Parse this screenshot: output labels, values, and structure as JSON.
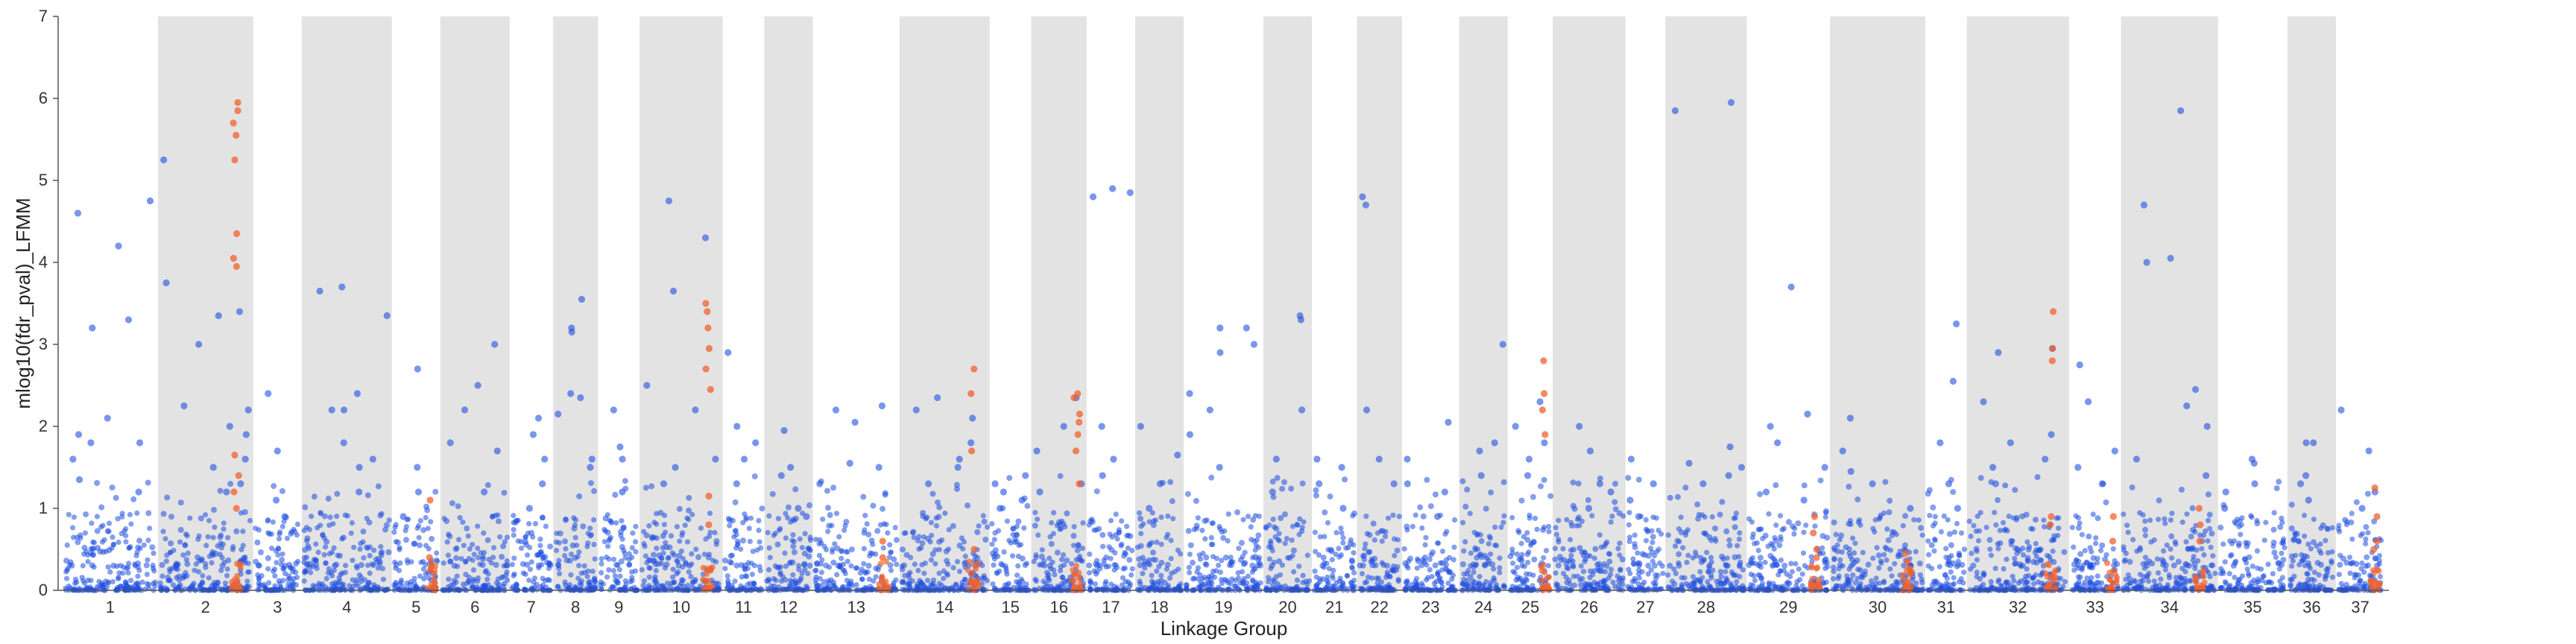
{
  "chart_data": {
    "type": "scatter",
    "title": "",
    "xlabel": "Linkage Group",
    "ylabel": "mlog10(fdr_pval)_LFMM",
    "ylim": [
      0,
      7
    ],
    "yticks": [
      0,
      1,
      2,
      3,
      4,
      5,
      6,
      7
    ],
    "grid": false,
    "shaded_alternate_groups": true,
    "colors": {
      "neutral": "#1f4fe0",
      "highlight": "#f0622e",
      "band": "#e3e3e3",
      "axis": "#555555"
    },
    "groups": [
      {
        "label": "1",
        "width": 5.5,
        "peaks": [
          4.75,
          4.6,
          4.2,
          3.3,
          3.2,
          2.1,
          1.9,
          1.8,
          1.8,
          1.6,
          1.35,
          1.2
        ],
        "hl": []
      },
      {
        "label": "2",
        "width": 5.5,
        "peaks": [
          5.25,
          3.75,
          3.4,
          3.35,
          3.0,
          2.25,
          2.2,
          2.0,
          1.9,
          1.6,
          1.5,
          1.3,
          1.2
        ],
        "hl": [
          5.95,
          5.85,
          5.7,
          5.55,
          5.25,
          4.35,
          4.05,
          3.95,
          1.65,
          1.4,
          1.2,
          1.0
        ]
      },
      {
        "label": "3",
        "width": 2.8,
        "peaks": [
          2.4,
          1.7,
          1.1,
          0.9
        ],
        "hl": []
      },
      {
        "label": "4",
        "width": 5.2,
        "peaks": [
          3.7,
          3.65,
          3.35,
          2.4,
          2.2,
          2.2,
          1.8,
          1.6,
          1.5,
          1.2
        ],
        "hl": []
      },
      {
        "label": "5",
        "width": 2.8,
        "peaks": [
          2.7,
          1.5,
          1.2,
          0.9
        ],
        "hl": [
          1.1,
          0.4
        ]
      },
      {
        "label": "6",
        "width": 4.0,
        "peaks": [
          3.0,
          2.5,
          2.2,
          1.8,
          1.7,
          1.2
        ],
        "hl": []
      },
      {
        "label": "7",
        "width": 2.5,
        "peaks": [
          2.1,
          1.9,
          1.6,
          1.3,
          1.0
        ],
        "hl": []
      },
      {
        "label": "8",
        "width": 2.6,
        "peaks": [
          3.55,
          3.2,
          3.15,
          2.4,
          2.35,
          2.15,
          1.6,
          1.5
        ],
        "hl": []
      },
      {
        "label": "9",
        "width": 2.4,
        "peaks": [
          2.2,
          1.75,
          1.6,
          1.2
        ],
        "hl": []
      },
      {
        "label": "10",
        "width": 4.8,
        "peaks": [
          4.75,
          4.3,
          3.65,
          2.5,
          2.2,
          1.6,
          1.5,
          1.3
        ],
        "hl": [
          3.5,
          3.4,
          3.2,
          2.95,
          2.7,
          2.45,
          1.15,
          0.8
        ]
      },
      {
        "label": "11",
        "width": 2.4,
        "peaks": [
          2.9,
          2.0,
          1.8,
          1.6,
          1.3
        ],
        "hl": []
      },
      {
        "label": "12",
        "width": 2.8,
        "peaks": [
          1.95,
          1.5,
          1.4,
          1.0,
          0.9
        ],
        "hl": []
      },
      {
        "label": "13",
        "width": 5.0,
        "peaks": [
          2.25,
          2.2,
          2.05,
          1.55,
          1.5,
          1.3
        ],
        "hl": [
          0.6,
          0.4
        ]
      },
      {
        "label": "14",
        "width": 5.2,
        "peaks": [
          2.35,
          2.2,
          2.1,
          1.8,
          1.6,
          1.5,
          1.3
        ],
        "hl": [
          2.7,
          2.4,
          1.7,
          0.5
        ]
      },
      {
        "label": "15",
        "width": 2.4,
        "peaks": [
          1.4,
          1.3,
          1.2,
          1.1,
          1.0
        ],
        "hl": []
      },
      {
        "label": "16",
        "width": 3.2,
        "peaks": [
          2.35,
          2.0,
          1.7,
          1.3,
          1.2
        ],
        "hl": [
          2.4,
          2.35,
          2.15,
          2.05,
          1.9,
          1.7,
          1.3
        ]
      },
      {
        "label": "17",
        "width": 2.8,
        "peaks": [
          4.9,
          4.85,
          4.8,
          2.0,
          1.6,
          1.4
        ],
        "hl": []
      },
      {
        "label": "18",
        "width": 2.8,
        "peaks": [
          2.0,
          1.65,
          1.3,
          1.0
        ],
        "hl": []
      },
      {
        "label": "19",
        "width": 4.6,
        "peaks": [
          3.2,
          3.2,
          3.0,
          2.9,
          2.4,
          2.2,
          1.9,
          1.5
        ],
        "hl": []
      },
      {
        "label": "20",
        "width": 2.8,
        "peaks": [
          3.35,
          3.3,
          2.2,
          1.6,
          1.2
        ],
        "hl": []
      },
      {
        "label": "21",
        "width": 2.6,
        "peaks": [
          1.6,
          1.5,
          1.3,
          1.0
        ],
        "hl": []
      },
      {
        "label": "22",
        "width": 2.6,
        "peaks": [
          4.8,
          4.7,
          2.2,
          1.6,
          1.3
        ],
        "hl": []
      },
      {
        "label": "23",
        "width": 3.3,
        "peaks": [
          2.05,
          1.6,
          1.3,
          1.2,
          0.9
        ],
        "hl": []
      },
      {
        "label": "24",
        "width": 2.8,
        "peaks": [
          3.0,
          1.8,
          1.7,
          1.4
        ],
        "hl": []
      },
      {
        "label": "25",
        "width": 2.6,
        "peaks": [
          2.3,
          2.0,
          1.8,
          1.6,
          1.4
        ],
        "hl": [
          2.8,
          2.4,
          2.2,
          1.9
        ]
      },
      {
        "label": "26",
        "width": 4.2,
        "peaks": [
          2.0,
          1.7,
          1.3,
          1.2,
          1.0
        ],
        "hl": []
      },
      {
        "label": "27",
        "width": 2.3,
        "peaks": [
          1.6,
          1.3,
          1.1,
          0.9
        ],
        "hl": []
      },
      {
        "label": "28",
        "width": 4.7,
        "peaks": [
          5.95,
          5.85,
          1.75,
          1.55,
          1.5,
          1.4,
          1.3
        ],
        "hl": []
      },
      {
        "label": "29",
        "width": 4.8,
        "peaks": [
          3.7,
          2.15,
          2.0,
          1.8,
          1.5,
          1.2,
          1.1
        ],
        "hl": [
          0.9,
          0.7,
          0.5,
          0.4
        ]
      },
      {
        "label": "30",
        "width": 5.5,
        "peaks": [
          2.1,
          1.7,
          1.45,
          1.3,
          1.0
        ],
        "hl": [
          0.45,
          0.35
        ]
      },
      {
        "label": "31",
        "width": 2.4,
        "peaks": [
          3.25,
          2.55,
          1.8,
          1.3,
          1.0
        ],
        "hl": []
      },
      {
        "label": "32",
        "width": 5.9,
        "peaks": [
          2.95,
          2.9,
          2.3,
          1.9,
          1.8,
          1.6,
          1.5,
          1.3
        ],
        "hl": [
          3.4,
          2.95,
          2.8,
          0.9,
          0.8
        ]
      },
      {
        "label": "33",
        "width": 3.0,
        "peaks": [
          2.75,
          2.3,
          1.7,
          1.5,
          1.3
        ],
        "hl": [
          0.9,
          0.6
        ]
      },
      {
        "label": "34",
        "width": 5.6,
        "peaks": [
          5.85,
          4.7,
          4.05,
          4.0,
          2.45,
          2.25,
          2.0,
          1.6,
          1.4
        ],
        "hl": [
          1.0,
          0.8,
          0.6
        ]
      },
      {
        "label": "35",
        "width": 4.0,
        "peaks": [
          1.6,
          1.55,
          1.3,
          1.2,
          1.0
        ],
        "hl": []
      },
      {
        "label": "36",
        "width": 2.8,
        "peaks": [
          1.8,
          1.8,
          1.4,
          1.3,
          1.1
        ],
        "hl": []
      },
      {
        "label": "37",
        "width": 2.8,
        "peaks": [
          2.2,
          1.7,
          1.2,
          1.0
        ],
        "hl": [
          1.25,
          0.9,
          0.6,
          0.5
        ]
      }
    ]
  }
}
